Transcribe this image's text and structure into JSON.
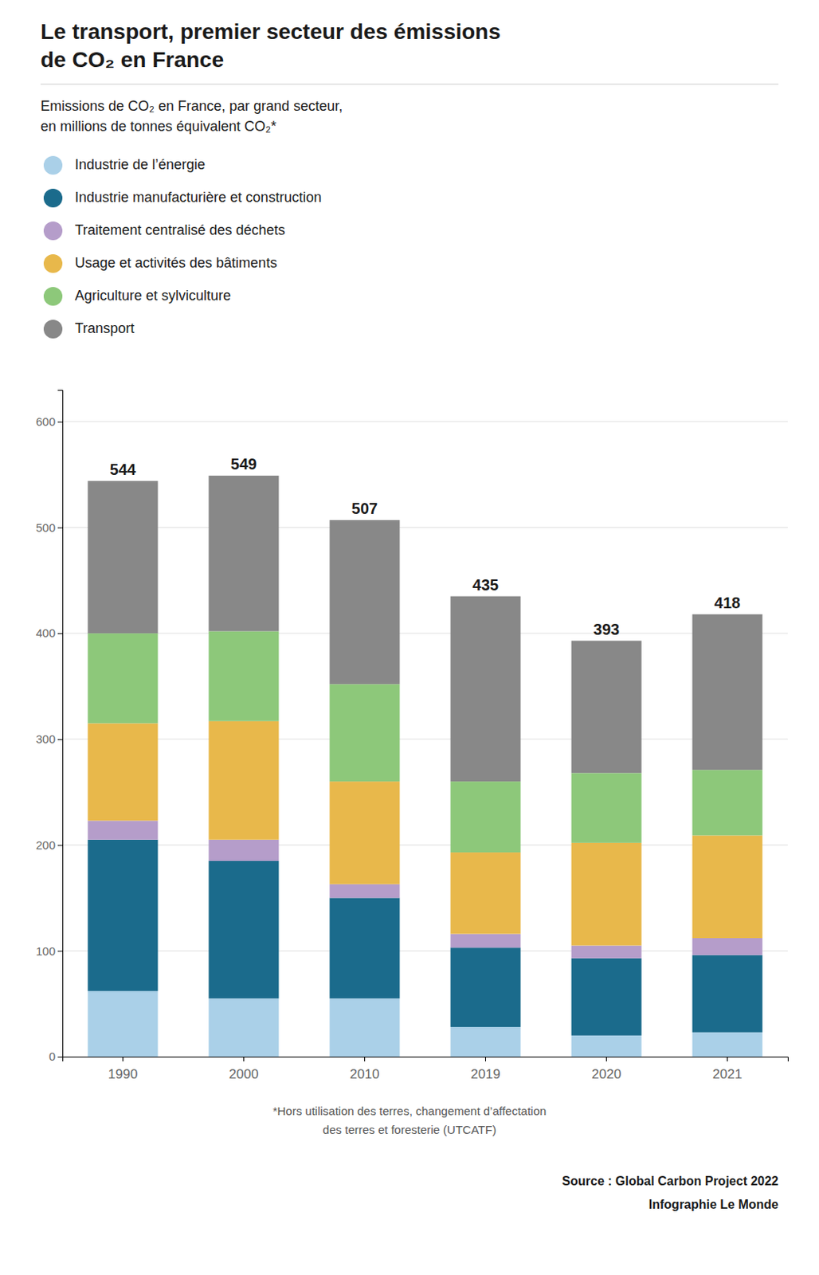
{
  "chart_data": {
    "type": "bar",
    "stacked": true,
    "title": [
      "Le transport, premier secteur des émissions",
      "de CO₂ en France"
    ],
    "subtitle": [
      "Emissions de CO₂ en France, par grand secteur,",
      "en millions de tonnes équivalent CO₂*"
    ],
    "categories": [
      "1990",
      "2000",
      "2010",
      "2019",
      "2020",
      "2021"
    ],
    "series": [
      {
        "name": "Industrie de l’énergie",
        "color": "#aad0e8",
        "values": [
          62,
          55,
          55,
          28,
          20,
          23
        ]
      },
      {
        "name": "Industrie manufacturière et construction",
        "color": "#1b6b8c",
        "values": [
          143,
          130,
          95,
          75,
          73,
          73
        ]
      },
      {
        "name": "Traitement centralisé des déchets",
        "color": "#b59dca",
        "values": [
          18,
          20,
          13,
          13,
          12,
          16
        ]
      },
      {
        "name": "Usage et activités des bâtiments",
        "color": "#e8b84b",
        "values": [
          92,
          112,
          97,
          77,
          97,
          97
        ]
      },
      {
        "name": "Agriculture et sylviculture",
        "color": "#8dc87a",
        "values": [
          85,
          85,
          92,
          67,
          66,
          62
        ]
      },
      {
        "name": "Transport",
        "color": "#888888",
        "values": [
          144,
          147,
          155,
          175,
          125,
          147
        ]
      }
    ],
    "totals": [
      544,
      549,
      507,
      435,
      393,
      418
    ],
    "ylim": [
      0,
      630
    ],
    "yticks": [
      0,
      100,
      200,
      300,
      400,
      500,
      600
    ],
    "grid": true,
    "legend": "top-left",
    "annotations": [
      "*Hors utilisation des terres, changement d’affectation",
      "des terres et foresterie (UTCATF)",
      "Source : Global Carbon Project 2022",
      "Infographie Le Monde"
    ]
  }
}
